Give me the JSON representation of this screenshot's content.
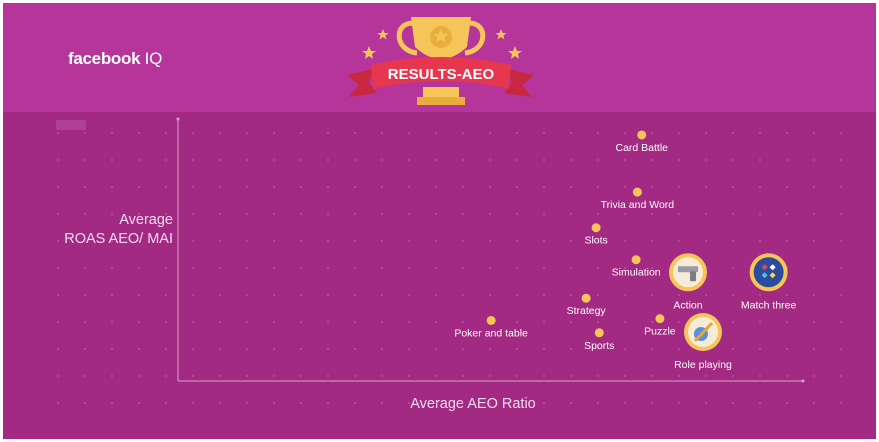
{
  "header": {
    "brand_bold": "facebook",
    "brand_light": " IQ",
    "badge_text": "RESULTS-AEO"
  },
  "colors": {
    "background": "#a32a82",
    "header": "#b5359a",
    "point": "#f6c55a",
    "text": "#ffffff"
  },
  "chart_data": {
    "type": "scatter",
    "xlabel": "Average AEO Ratio",
    "ylabel_lines": [
      "Average",
      "ROAS AEO/ MAI"
    ],
    "xlim": [
      0,
      100
    ],
    "ylim": [
      0,
      100
    ],
    "grid": "dotted",
    "points": [
      {
        "label": "Card Battle",
        "x": 74.2,
        "y": 93.9,
        "icon": null
      },
      {
        "label": "Trivia and Word",
        "x": 73.5,
        "y": 72.1,
        "icon": null
      },
      {
        "label": "Slots",
        "x": 66.9,
        "y": 58.5,
        "icon": null
      },
      {
        "label": "Simulation",
        "x": 73.3,
        "y": 46.3,
        "icon": null
      },
      {
        "label": "Action",
        "x": 81.6,
        "y": 41.5,
        "icon": "gun-icon"
      },
      {
        "label": "Match three",
        "x": 94.5,
        "y": 41.5,
        "icon": "gems-icon"
      },
      {
        "label": "Strategy",
        "x": 65.3,
        "y": 31.6,
        "icon": null
      },
      {
        "label": "Poker and table",
        "x": 50.1,
        "y": 23.1,
        "icon": null
      },
      {
        "label": "Puzzle",
        "x": 77.1,
        "y": 23.8,
        "icon": null
      },
      {
        "label": "Sports",
        "x": 67.4,
        "y": 18.4,
        "icon": null
      },
      {
        "label": "Role playing",
        "x": 84.0,
        "y": 18.7,
        "icon": "sword-shield-icon"
      }
    ]
  }
}
